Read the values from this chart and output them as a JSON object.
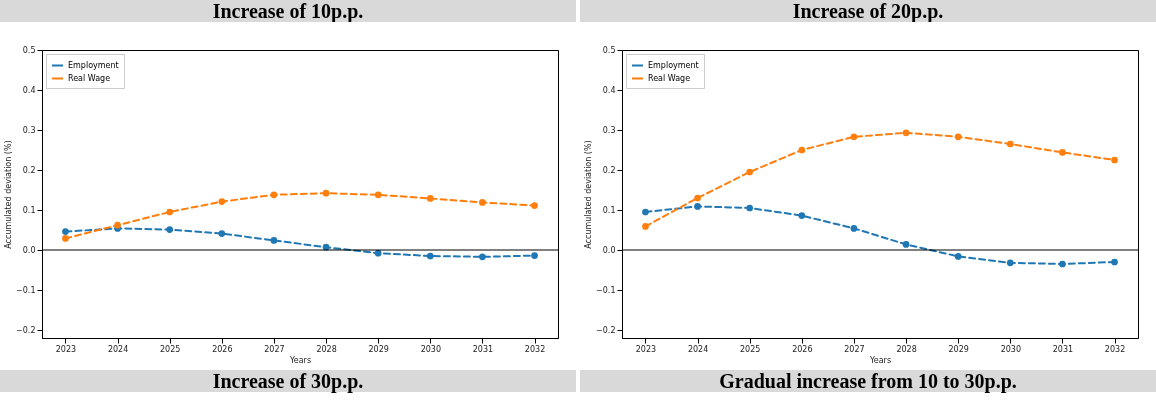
{
  "chart_data": [
    {
      "type": "line",
      "title": "Increase of 10p.p.",
      "xlabel": "Years",
      "ylabel": "Accumulated deviation (%)",
      "x": [
        2023,
        2024,
        2025,
        2026,
        2027,
        2028,
        2029,
        2030,
        2031,
        2032
      ],
      "series": [
        {
          "name": "Employment",
          "color": "#1f77b4",
          "values": [
            0.046,
            0.054,
            0.051,
            0.041,
            0.024,
            0.007,
            -0.008,
            -0.015,
            -0.017,
            -0.014
          ]
        },
        {
          "name": "Real Wage",
          "color": "#ff7f0e",
          "values": [
            0.029,
            0.062,
            0.095,
            0.121,
            0.138,
            0.142,
            0.138,
            0.129,
            0.119,
            0.111
          ]
        }
      ],
      "xlim": [
        2022.55,
        2032.45
      ],
      "xticks": [
        2023,
        2024,
        2025,
        2026,
        2027,
        2028,
        2029,
        2030,
        2031,
        2032
      ],
      "ylim": [
        -0.22,
        0.5
      ],
      "yticks": [
        {
          "value": -0.2,
          "label": "−0.2"
        },
        {
          "value": -0.1,
          "label": "−0.1"
        },
        {
          "value": 0,
          "label": "0.0"
        },
        {
          "value": 0.1,
          "label": "0.1"
        },
        {
          "value": 0.2,
          "label": "0.2"
        },
        {
          "value": 0.3,
          "label": "0.3"
        },
        {
          "value": 0.4,
          "label": "0.4"
        },
        {
          "value": 0.5,
          "label": "0.5"
        }
      ],
      "ref_lines": [
        {
          "axis": "y",
          "value": 0,
          "color": "#000000"
        }
      ],
      "legend": "top left",
      "marker": "circle",
      "line_style": "dashed",
      "grid": false
    },
    {
      "type": "line",
      "title": "Increase of 20p.p.",
      "xlabel": "Years",
      "ylabel": "Accumulated deviation (%)",
      "x": [
        2023,
        2024,
        2025,
        2026,
        2027,
        2028,
        2029,
        2030,
        2031,
        2032
      ],
      "series": [
        {
          "name": "Employment",
          "color": "#1f77b4",
          "values": [
            0.095,
            0.109,
            0.105,
            0.086,
            0.054,
            0.014,
            -0.016,
            -0.032,
            -0.035,
            -0.03
          ]
        },
        {
          "name": "Real Wage",
          "color": "#ff7f0e",
          "values": [
            0.059,
            0.13,
            0.195,
            0.25,
            0.283,
            0.293,
            0.283,
            0.265,
            0.244,
            0.225
          ]
        }
      ],
      "xlim": [
        2022.55,
        2032.45
      ],
      "xticks": [
        2023,
        2024,
        2025,
        2026,
        2027,
        2028,
        2029,
        2030,
        2031,
        2032
      ],
      "ylim": [
        -0.22,
        0.5
      ],
      "yticks": [
        {
          "value": -0.2,
          "label": "−0.2"
        },
        {
          "value": -0.1,
          "label": "−0.1"
        },
        {
          "value": 0,
          "label": "0.0"
        },
        {
          "value": 0.1,
          "label": "0.1"
        },
        {
          "value": 0.2,
          "label": "0.2"
        },
        {
          "value": 0.3,
          "label": "0.3"
        },
        {
          "value": 0.4,
          "label": "0.4"
        },
        {
          "value": 0.5,
          "label": "0.5"
        }
      ],
      "ref_lines": [
        {
          "axis": "y",
          "value": 0,
          "color": "#000000"
        }
      ],
      "legend": "top left",
      "marker": "circle",
      "line_style": "dashed",
      "grid": false
    },
    {
      "type": "other",
      "title": "Increase of 30p.p."
    },
    {
      "type": "other",
      "title": "Gradual increase from 10 to 30p.p."
    }
  ]
}
